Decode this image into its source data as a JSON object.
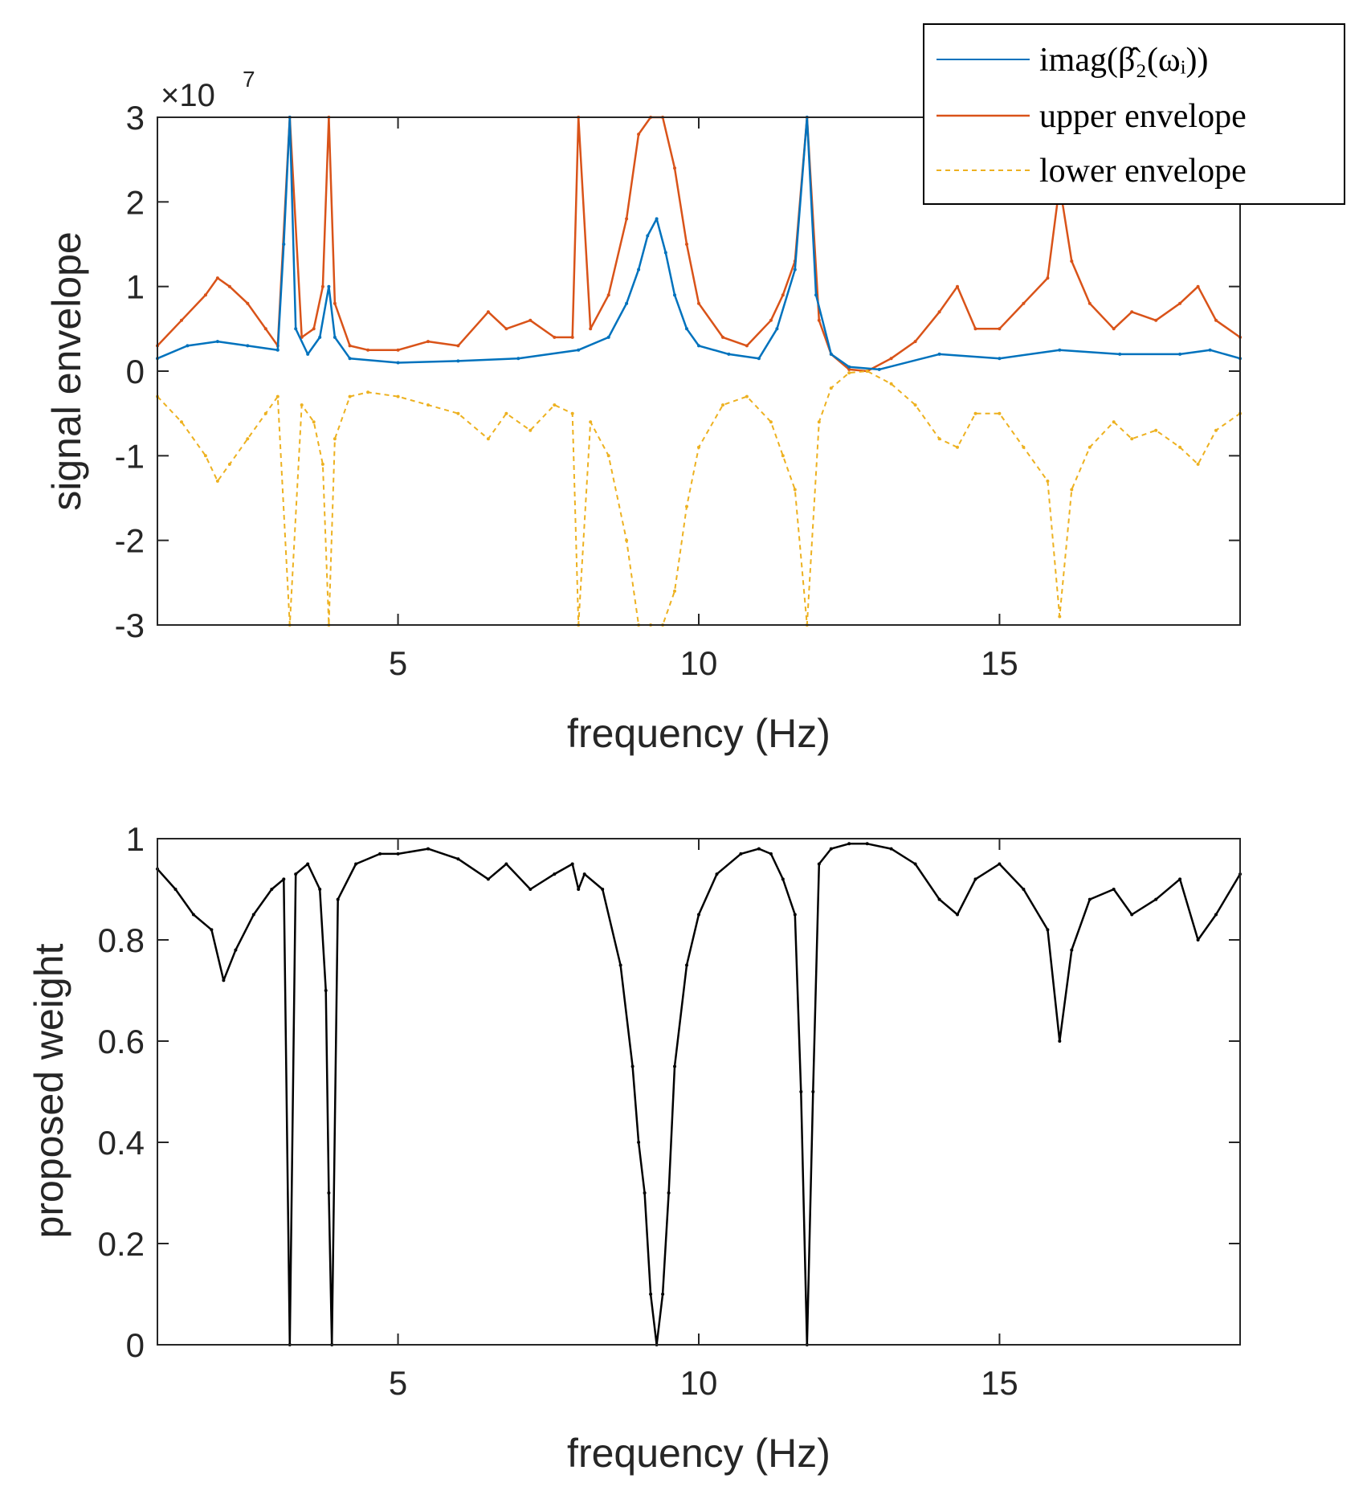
{
  "colors": {
    "imag": "#0072BD",
    "upper": "#D95319",
    "lower": "#EDB120",
    "weight": "#000000",
    "axis": "#262626"
  },
  "chart_data": [
    {
      "type": "line",
      "title": "",
      "xlabel": "frequency (Hz)",
      "ylabel": "signal envelope",
      "y_exponent_label": "×10",
      "y_exponent_power": "7",
      "xlim": [
        1,
        19
      ],
      "ylim": [
        -3,
        3
      ],
      "xticks": [
        5,
        10,
        15
      ],
      "xtick_labels": [
        "5",
        "10",
        "15"
      ],
      "yticks": [
        -3,
        -2,
        -1,
        0,
        1,
        2,
        3
      ],
      "ytick_labels": [
        "-3",
        "-2",
        "-1",
        "0",
        "1",
        "2",
        "3"
      ],
      "legend_position": "top-right",
      "series": [
        {
          "name": "imag(β̂₂(ωᵢ))",
          "style": "solid",
          "color_key": "imag",
          "x": [
            1.0,
            1.5,
            2.0,
            2.5,
            3.0,
            3.1,
            3.2,
            3.3,
            3.5,
            3.7,
            3.85,
            3.95,
            4.2,
            5.0,
            6.0,
            7.0,
            8.0,
            8.5,
            8.8,
            9.0,
            9.15,
            9.3,
            9.45,
            9.6,
            9.8,
            10.0,
            10.5,
            11.0,
            11.3,
            11.6,
            11.8,
            11.95,
            12.2,
            12.5,
            13.0,
            14.0,
            15.0,
            16.0,
            17.0,
            18.0,
            18.5,
            19.0
          ],
          "y": [
            0.15,
            0.3,
            0.35,
            0.3,
            0.25,
            1.5,
            3.0,
            0.5,
            0.2,
            0.4,
            1.0,
            0.4,
            0.15,
            0.1,
            0.12,
            0.15,
            0.25,
            0.4,
            0.8,
            1.2,
            1.6,
            1.8,
            1.4,
            0.9,
            0.5,
            0.3,
            0.2,
            0.15,
            0.5,
            1.2,
            3.0,
            0.9,
            0.2,
            0.05,
            0.02,
            0.2,
            0.15,
            0.25,
            0.2,
            0.2,
            0.25,
            0.15
          ]
        },
        {
          "name": "upper envelope",
          "style": "solid",
          "color_key": "upper",
          "x": [
            1.0,
            1.4,
            1.8,
            2.0,
            2.2,
            2.5,
            2.8,
            3.0,
            3.2,
            3.4,
            3.6,
            3.75,
            3.85,
            3.95,
            4.2,
            4.5,
            5.0,
            5.5,
            6.0,
            6.5,
            6.8,
            7.2,
            7.6,
            7.9,
            8.0,
            8.2,
            8.5,
            8.8,
            9.0,
            9.2,
            9.4,
            9.6,
            9.8,
            10.0,
            10.4,
            10.8,
            11.2,
            11.4,
            11.6,
            11.8,
            12.0,
            12.2,
            12.5,
            12.8,
            13.2,
            13.6,
            14.0,
            14.3,
            14.6,
            15.0,
            15.4,
            15.8,
            16.0,
            16.2,
            16.5,
            16.9,
            17.2,
            17.6,
            18.0,
            18.3,
            18.6,
            19.0
          ],
          "y": [
            0.3,
            0.6,
            0.9,
            1.1,
            1.0,
            0.8,
            0.5,
            0.3,
            3.0,
            0.4,
            0.5,
            1.0,
            3.0,
            0.8,
            0.3,
            0.25,
            0.25,
            0.35,
            0.3,
            0.7,
            0.5,
            0.6,
            0.4,
            0.4,
            3.0,
            0.5,
            0.9,
            1.8,
            2.8,
            3.0,
            3.0,
            2.4,
            1.5,
            0.8,
            0.4,
            0.3,
            0.6,
            0.9,
            1.3,
            3.0,
            0.6,
            0.2,
            0.02,
            0.0,
            0.15,
            0.35,
            0.7,
            1.0,
            0.5,
            0.5,
            0.8,
            1.1,
            2.2,
            1.3,
            0.8,
            0.5,
            0.7,
            0.6,
            0.8,
            1.0,
            0.6,
            0.4
          ]
        },
        {
          "name": "lower envelope",
          "style": "dashed",
          "color_key": "lower",
          "x": [
            1.0,
            1.4,
            1.8,
            2.0,
            2.2,
            2.5,
            2.8,
            3.0,
            3.2,
            3.4,
            3.6,
            3.75,
            3.85,
            3.95,
            4.2,
            4.5,
            5.0,
            5.5,
            6.0,
            6.5,
            6.8,
            7.2,
            7.6,
            7.9,
            8.0,
            8.2,
            8.5,
            8.8,
            9.0,
            9.2,
            9.4,
            9.6,
            9.8,
            10.0,
            10.4,
            10.8,
            11.2,
            11.4,
            11.6,
            11.8,
            12.0,
            12.2,
            12.5,
            12.8,
            13.2,
            13.6,
            14.0,
            14.3,
            14.6,
            15.0,
            15.4,
            15.8,
            16.0,
            16.2,
            16.5,
            16.9,
            17.2,
            17.6,
            18.0,
            18.3,
            18.6,
            19.0
          ],
          "y": [
            -0.3,
            -0.6,
            -1.0,
            -1.3,
            -1.1,
            -0.8,
            -0.5,
            -0.3,
            -3.0,
            -0.4,
            -0.6,
            -1.1,
            -3.0,
            -0.8,
            -0.3,
            -0.25,
            -0.3,
            -0.4,
            -0.5,
            -0.8,
            -0.5,
            -0.7,
            -0.4,
            -0.5,
            -3.0,
            -0.6,
            -1.0,
            -2.0,
            -3.0,
            -3.0,
            -3.0,
            -2.6,
            -1.6,
            -0.9,
            -0.4,
            -0.3,
            -0.6,
            -1.0,
            -1.4,
            -3.0,
            -0.6,
            -0.2,
            -0.02,
            0.0,
            -0.15,
            -0.4,
            -0.8,
            -0.9,
            -0.5,
            -0.5,
            -0.9,
            -1.3,
            -2.9,
            -1.4,
            -0.9,
            -0.6,
            -0.8,
            -0.7,
            -0.9,
            -1.1,
            -0.7,
            -0.5
          ]
        }
      ]
    },
    {
      "type": "line",
      "title": "",
      "xlabel": "frequency (Hz)",
      "ylabel": "proposed weight",
      "xlim": [
        1,
        19
      ],
      "ylim": [
        0,
        1
      ],
      "xticks": [
        5,
        10,
        15
      ],
      "xtick_labels": [
        "5",
        "10",
        "15"
      ],
      "yticks": [
        0,
        0.2,
        0.4,
        0.6,
        0.8,
        1
      ],
      "ytick_labels": [
        "0",
        "0.2",
        "0.4",
        "0.6",
        "0.8",
        "1"
      ],
      "series": [
        {
          "name": "proposed weight",
          "style": "solid",
          "color_key": "weight",
          "x": [
            1.0,
            1.3,
            1.6,
            1.9,
            2.1,
            2.3,
            2.6,
            2.9,
            3.1,
            3.2,
            3.3,
            3.5,
            3.7,
            3.8,
            3.85,
            3.9,
            4.0,
            4.3,
            4.7,
            5.0,
            5.5,
            6.0,
            6.5,
            6.8,
            7.2,
            7.6,
            7.9,
            8.0,
            8.1,
            8.4,
            8.7,
            8.9,
            9.0,
            9.1,
            9.2,
            9.3,
            9.4,
            9.5,
            9.6,
            9.8,
            10.0,
            10.3,
            10.7,
            11.0,
            11.2,
            11.4,
            11.6,
            11.7,
            11.8,
            11.9,
            12.0,
            12.2,
            12.5,
            12.8,
            13.2,
            13.6,
            14.0,
            14.3,
            14.6,
            15.0,
            15.4,
            15.8,
            16.0,
            16.2,
            16.5,
            16.9,
            17.2,
            17.6,
            18.0,
            18.3,
            18.6,
            19.0
          ],
          "y": [
            0.94,
            0.9,
            0.85,
            0.82,
            0.72,
            0.78,
            0.85,
            0.9,
            0.92,
            0.0,
            0.93,
            0.95,
            0.9,
            0.7,
            0.3,
            0.0,
            0.88,
            0.95,
            0.97,
            0.97,
            0.98,
            0.96,
            0.92,
            0.95,
            0.9,
            0.93,
            0.95,
            0.9,
            0.93,
            0.9,
            0.75,
            0.55,
            0.4,
            0.3,
            0.1,
            0.0,
            0.1,
            0.3,
            0.55,
            0.75,
            0.85,
            0.93,
            0.97,
            0.98,
            0.97,
            0.92,
            0.85,
            0.5,
            0.0,
            0.5,
            0.95,
            0.98,
            0.99,
            0.99,
            0.98,
            0.95,
            0.88,
            0.85,
            0.92,
            0.95,
            0.9,
            0.82,
            0.6,
            0.78,
            0.88,
            0.9,
            0.85,
            0.88,
            0.92,
            0.8,
            0.85,
            0.93
          ]
        }
      ]
    }
  ]
}
